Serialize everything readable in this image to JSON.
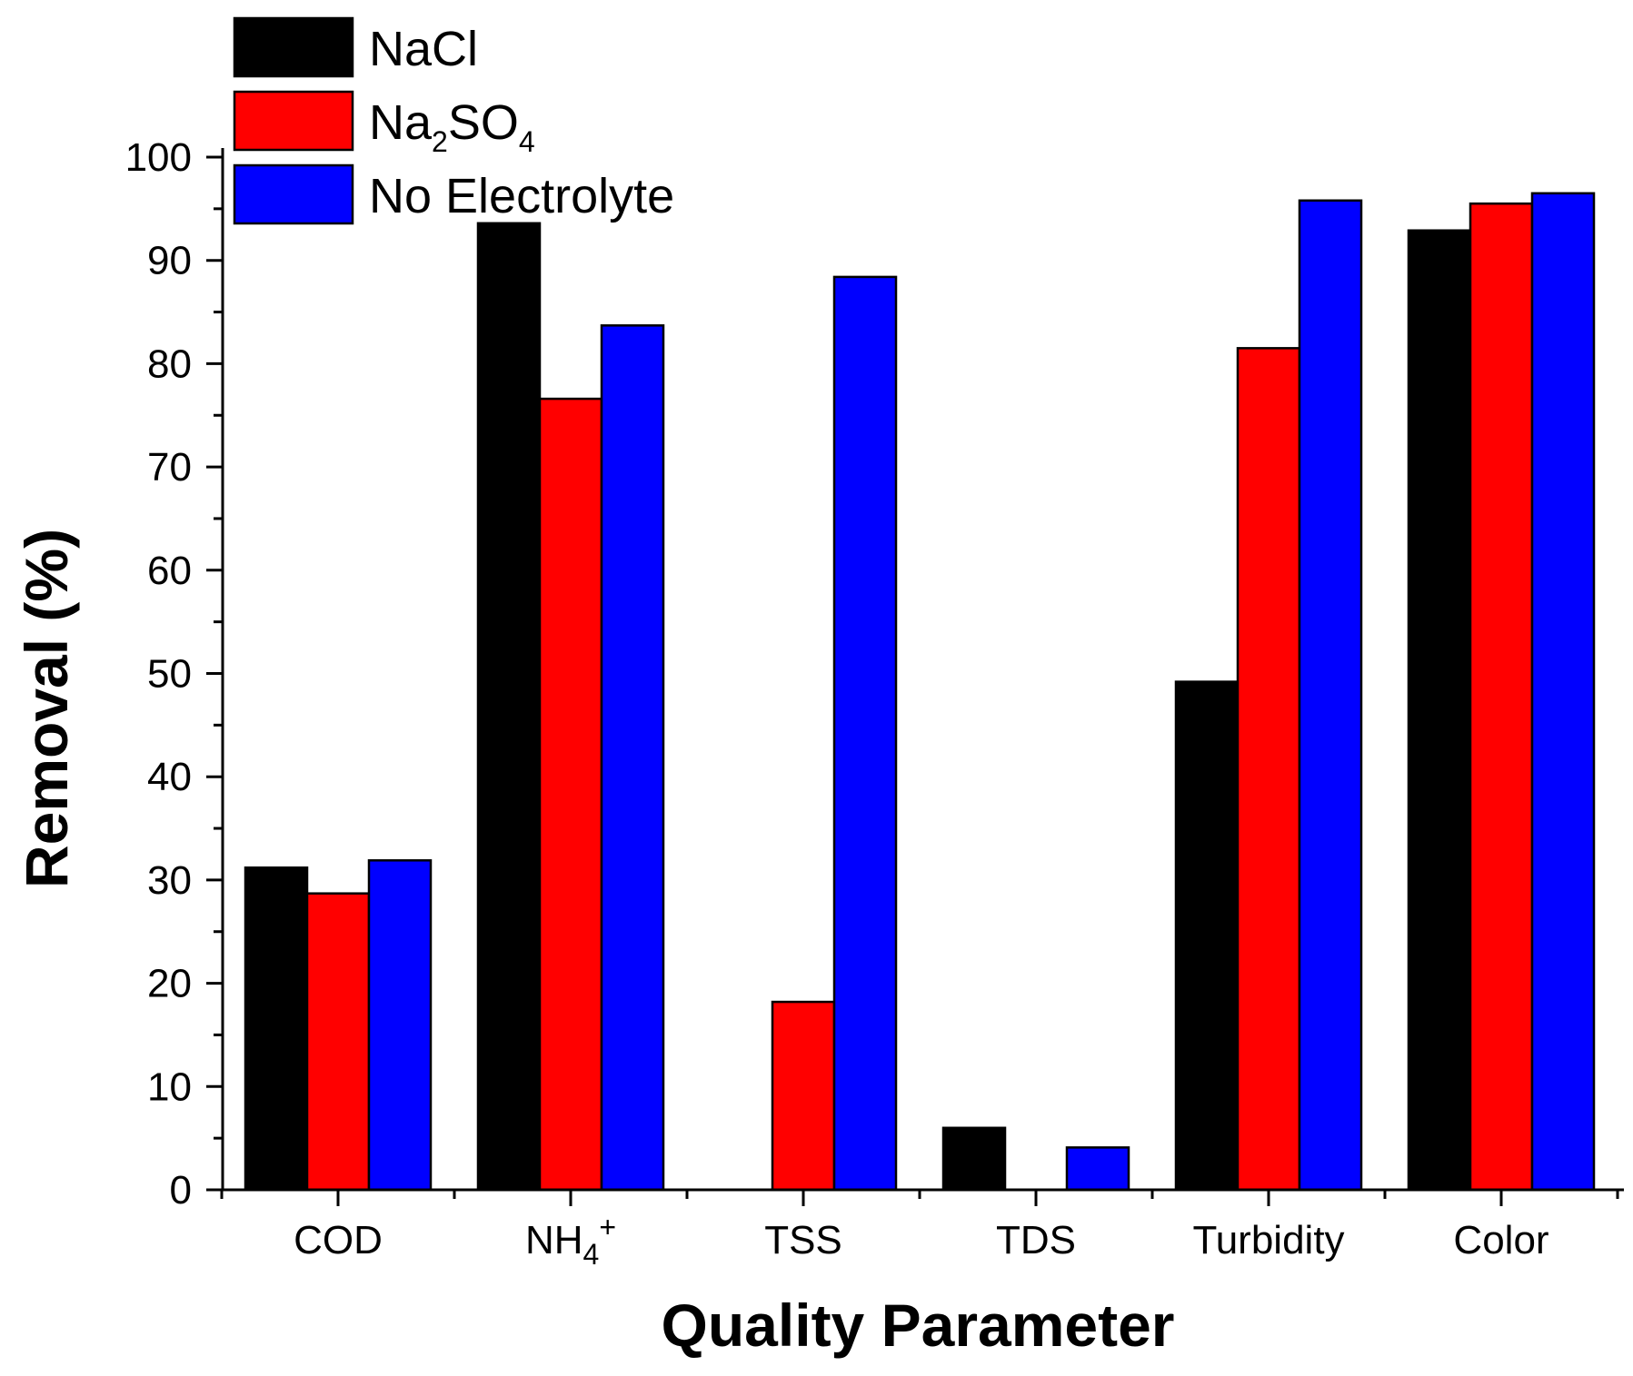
{
  "chart_data": {
    "type": "bar",
    "title": "",
    "xlabel": "Quality Parameter",
    "ylabel": "Removal (%)",
    "ylim": [
      0,
      100
    ],
    "yticks": [
      0,
      10,
      20,
      30,
      40,
      50,
      60,
      70,
      80,
      90,
      100
    ],
    "grid": false,
    "legend_position": "top-left",
    "categories": [
      {
        "label": "COD",
        "sub": "",
        "sup": ""
      },
      {
        "label": "NH",
        "sub": "4",
        "sup": "+"
      },
      {
        "label": "TSS",
        "sub": "",
        "sup": ""
      },
      {
        "label": "TDS",
        "sub": "",
        "sup": ""
      },
      {
        "label": "Turbidity",
        "sub": "",
        "sup": ""
      },
      {
        "label": "Color",
        "sub": "",
        "sup": ""
      }
    ],
    "series": [
      {
        "name": "NaCl",
        "legend_parts": [
          {
            "t": "NaCl",
            "sub": false
          }
        ],
        "color": "#000000",
        "values": [
          31.2,
          93.6,
          0,
          6.0,
          49.2,
          92.9
        ]
      },
      {
        "name": "Na2SO4",
        "legend_parts": [
          {
            "t": "Na",
            "sub": false
          },
          {
            "t": "2",
            "sub": true
          },
          {
            "t": "SO",
            "sub": false
          },
          {
            "t": "4",
            "sub": true
          }
        ],
        "color": "#ff0000",
        "values": [
          28.7,
          76.6,
          18.2,
          0,
          81.5,
          95.5
        ]
      },
      {
        "name": "No Electrolyte",
        "legend_parts": [
          {
            "t": "No Electrolyte",
            "sub": false
          }
        ],
        "color": "#0000ff",
        "values": [
          31.9,
          83.7,
          88.4,
          4.1,
          95.8,
          96.5
        ]
      }
    ]
  }
}
